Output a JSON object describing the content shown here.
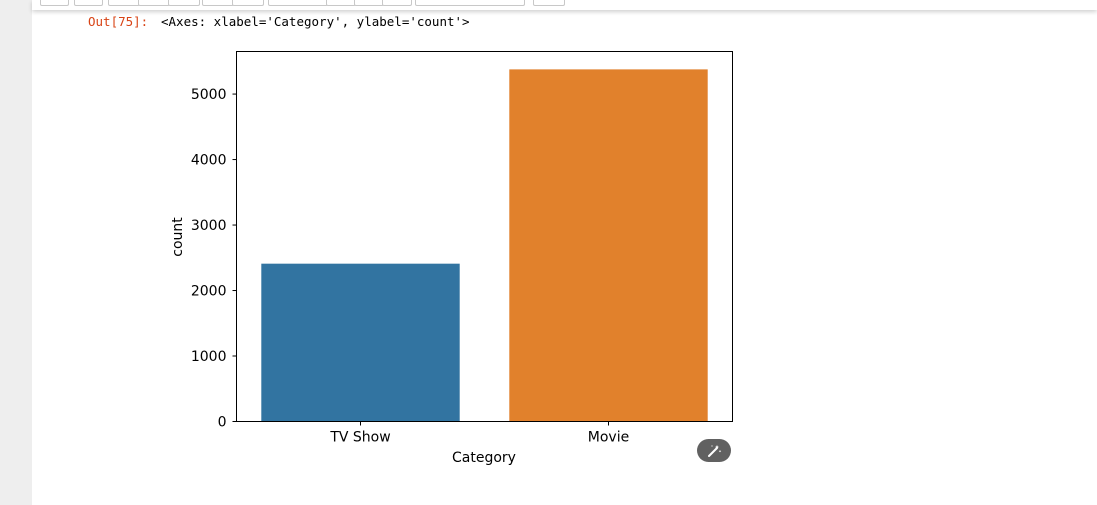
{
  "output": {
    "prompt": "Out[75]:",
    "text": "<Axes: xlabel='Category', ylabel='count'>"
  },
  "chart_data": {
    "type": "bar",
    "categories": [
      "TV Show",
      "Movie"
    ],
    "values": [
      2410,
      5377
    ],
    "colors": [
      "#3274a1",
      "#e1812c"
    ],
    "xlabel": "Category",
    "ylabel": "count",
    "ylim": [
      0,
      5650
    ],
    "yticks": [
      0,
      1000,
      2000,
      3000,
      4000,
      5000
    ],
    "grid": false
  },
  "icons": {
    "magic_button": "magic-wand-icon"
  }
}
